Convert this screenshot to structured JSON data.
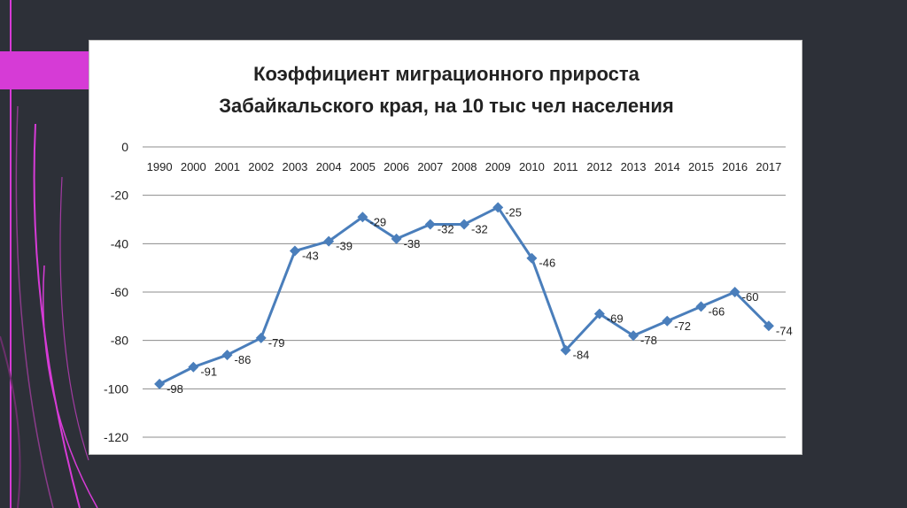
{
  "colors": {
    "background": "#2d3038",
    "accent": "#d63bd6",
    "series": "#4a7ebb",
    "panel": "#ffffff"
  },
  "chart_data": {
    "type": "line",
    "title_line1": "Коэффициент миграционного прироста",
    "title_line2": "Забайкальского края,  на 10 тыс чел населения",
    "categories": [
      "1990",
      "2000",
      "2001",
      "2002",
      "2003",
      "2004",
      "2005",
      "2006",
      "2007",
      "2008",
      "2009",
      "2010",
      "2011",
      "2012",
      "2013",
      "2014",
      "2015",
      "2016",
      "2017"
    ],
    "series": [
      {
        "values": [
          -98,
          -91,
          -86,
          -79,
          -43,
          -39,
          -29,
          -38,
          -32,
          -32,
          -25,
          -46,
          -84,
          -69,
          -78,
          -72,
          -66,
          -60,
          -74
        ]
      }
    ],
    "ylim": [
      -120,
      0
    ],
    "yticks": [
      0,
      -20,
      -40,
      -60,
      -80,
      -100,
      -120
    ],
    "xaxis_position": "top",
    "grid": true,
    "marker": "diamond",
    "data_labels": true
  }
}
